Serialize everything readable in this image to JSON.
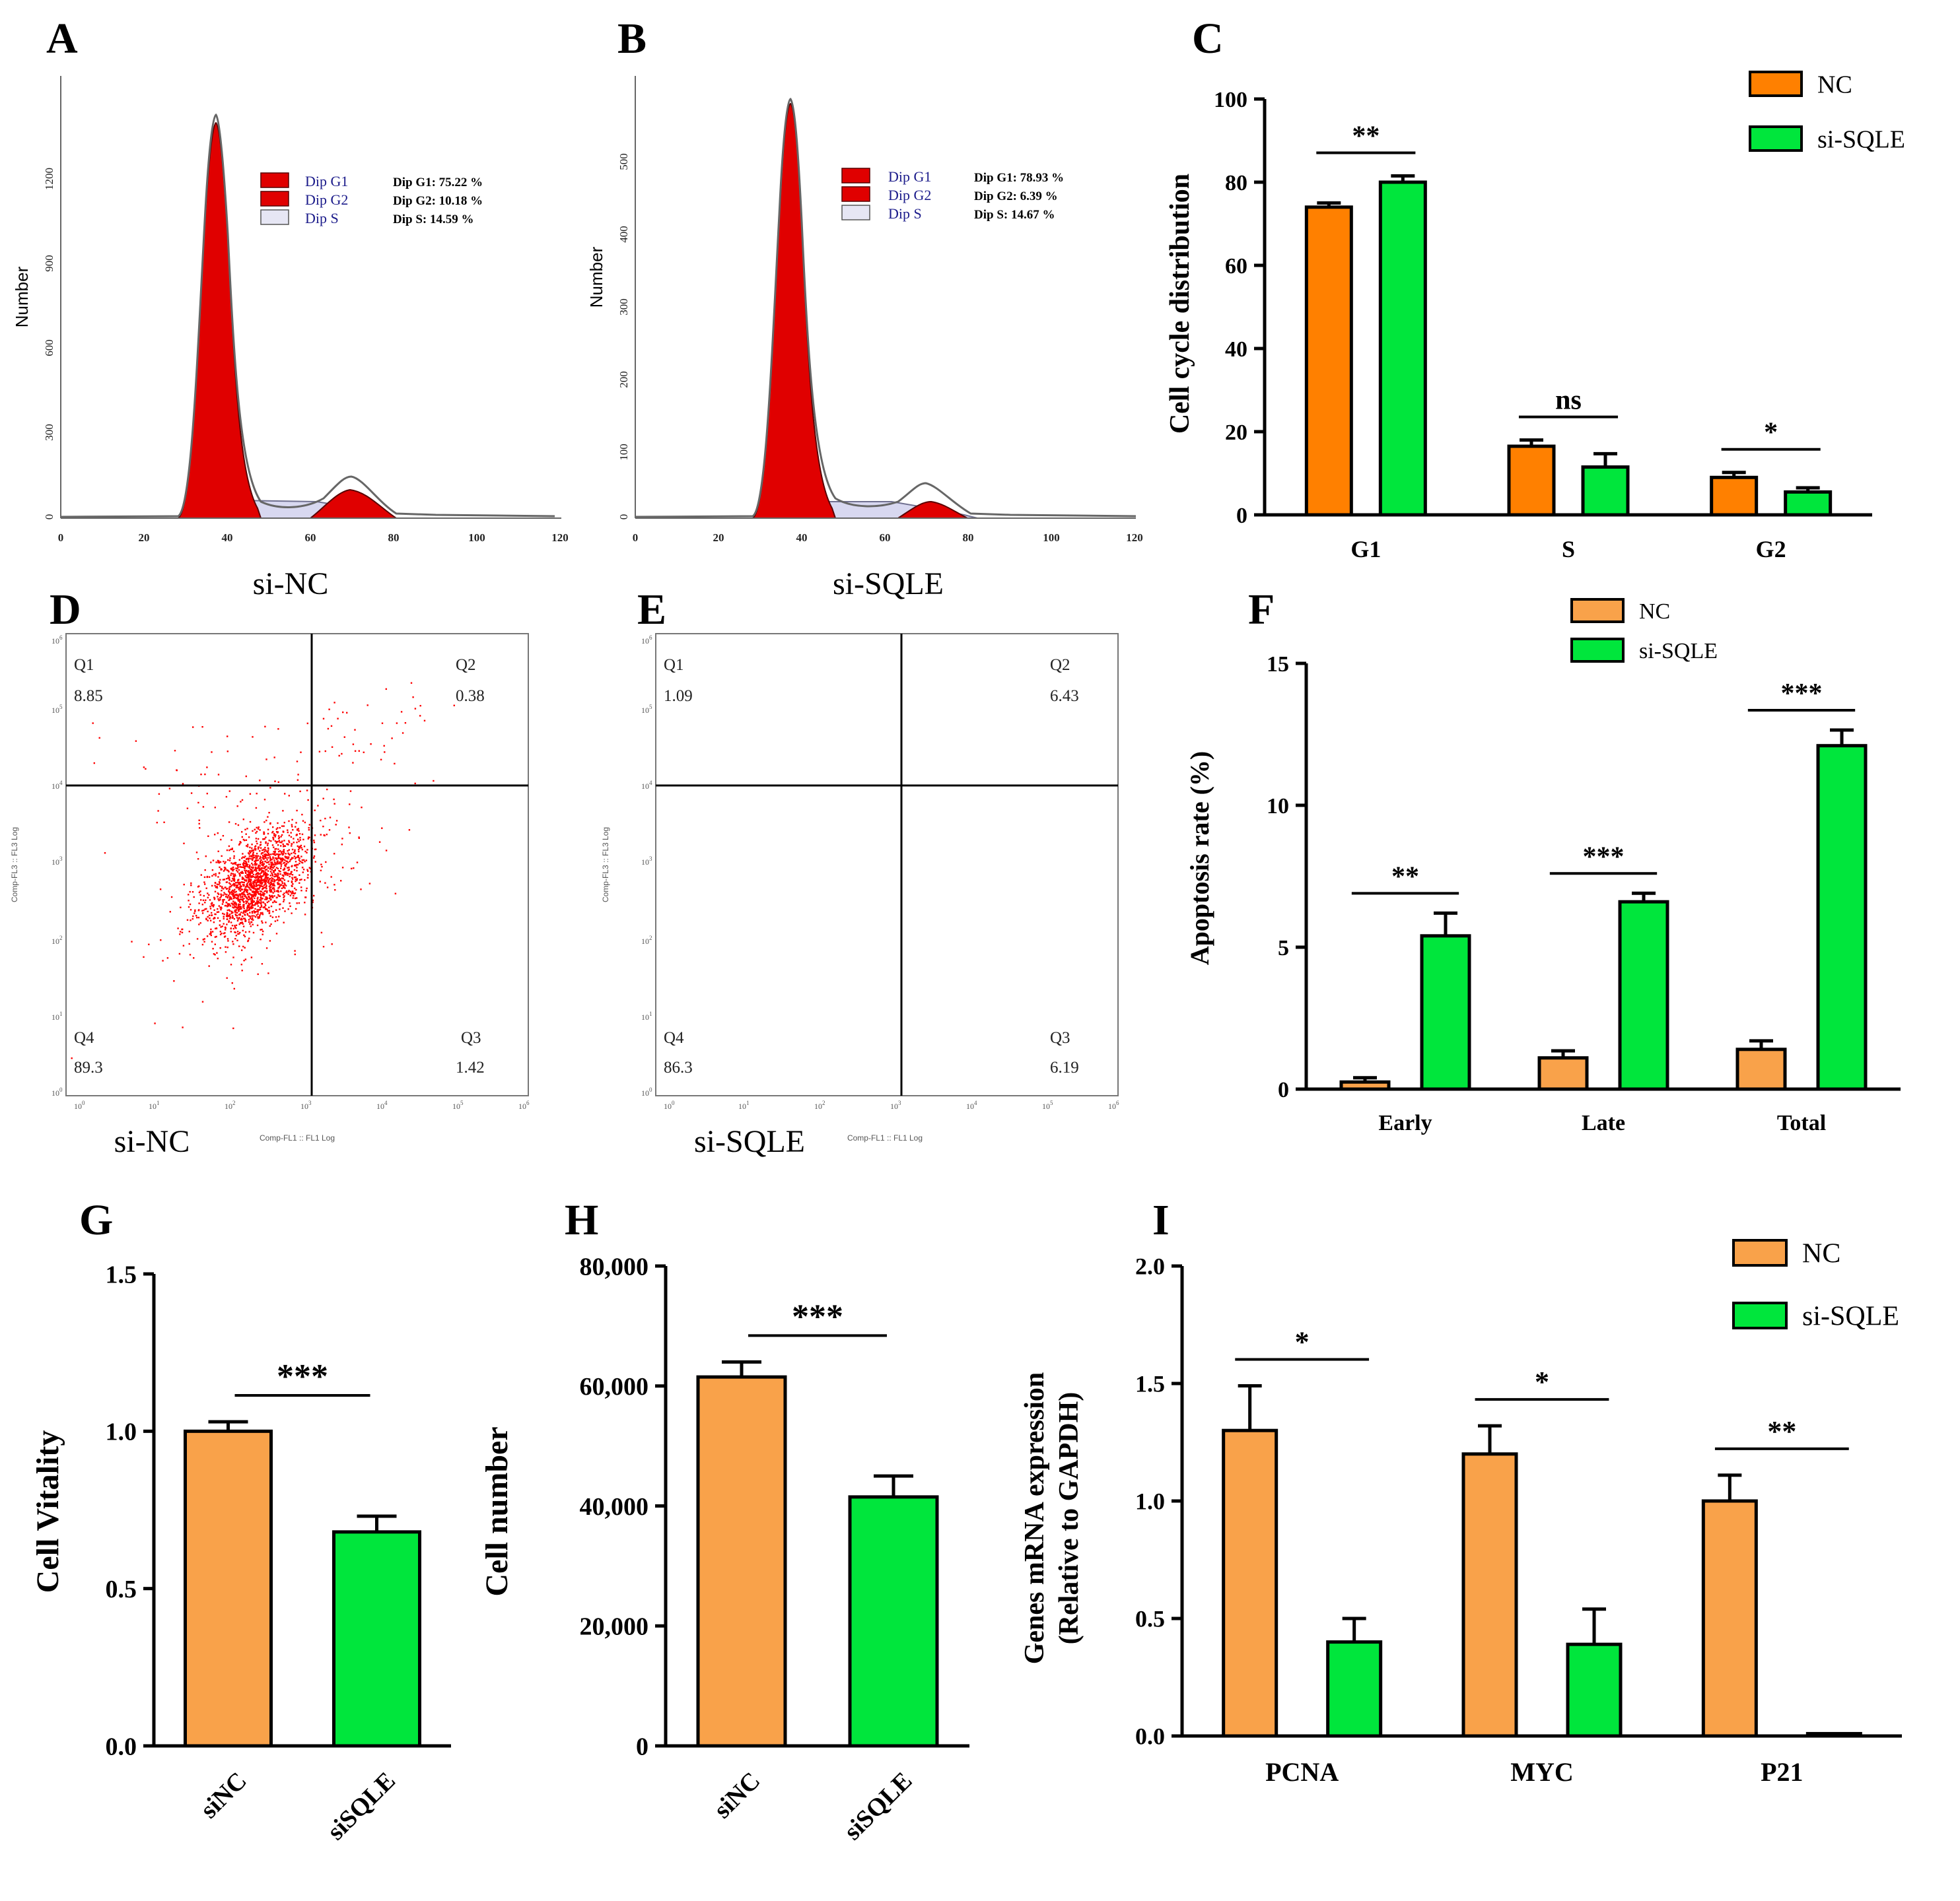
{
  "panels": {
    "A": {
      "letter": "A",
      "caption": "si-NC",
      "ylabel": "Number",
      "y_ticks": [
        "0",
        "300",
        "600",
        "900",
        "1200"
      ],
      "x_ticks": [
        "0",
        "20",
        "40",
        "60",
        "80",
        "100",
        "120"
      ],
      "legend": [
        "Dip G1",
        "Dip G2",
        "Dip S"
      ],
      "stats": [
        "Dip G1: 75.22 %",
        "Dip G2: 10.18 %",
        "Dip S: 14.59 %"
      ]
    },
    "B": {
      "letter": "B",
      "caption": "si-SQLE",
      "ylabel": "Number",
      "y_ticks": [
        "0",
        "100",
        "200",
        "300",
        "400",
        "500"
      ],
      "x_ticks": [
        "0",
        "20",
        "40",
        "60",
        "80",
        "100",
        "120"
      ],
      "legend": [
        "Dip G1",
        "Dip G2",
        "Dip S"
      ],
      "stats": [
        "Dip G1: 78.93 %",
        "Dip G2: 6.39 %",
        "Dip S: 14.67 %"
      ]
    },
    "C": {
      "letter": "C"
    },
    "D": {
      "letter": "D",
      "caption": "si-NC",
      "xlabel": "Comp-FL1 :: FL1 Log",
      "ylabel": "Comp-FL3 :: FL3 Log",
      "quadrants": [
        {
          "name": "Q1",
          "value": "8.85"
        },
        {
          "name": "Q2",
          "value": "0.38"
        },
        {
          "name": "Q4",
          "value": "89.3"
        },
        {
          "name": "Q3",
          "value": "1.42"
        }
      ]
    },
    "E": {
      "letter": "E",
      "caption": "si-SQLE",
      "xlabel": "Comp-FL1 :: FL1 Log",
      "ylabel": "Comp-FL3 :: FL3 Log",
      "quadrants": [
        {
          "name": "Q1",
          "value": "1.09"
        },
        {
          "name": "Q2",
          "value": "6.43"
        },
        {
          "name": "Q4",
          "value": "86.3"
        },
        {
          "name": "Q3",
          "value": "6.19"
        }
      ]
    },
    "F": {
      "letter": "F"
    },
    "G": {
      "letter": "G"
    },
    "H": {
      "letter": "H"
    },
    "I": {
      "letter": "I"
    }
  },
  "colors": {
    "nc": "#ff8000",
    "sqle": "#00e63c",
    "nc_light": "#f9a24a",
    "sqle_light": "#22ee22",
    "flow": "#ff0000",
    "hist_fill": "#e00000"
  },
  "chart_data": [
    {
      "panel": "C",
      "type": "bar",
      "categories": [
        "G1",
        "S",
        "G2"
      ],
      "series": [
        {
          "name": "NC",
          "values": [
            74,
            16.5,
            9
          ],
          "errors": [
            1,
            1.5,
            1.2
          ]
        },
        {
          "name": "si-SQLE",
          "values": [
            80,
            11.5,
            5.5
          ],
          "errors": [
            1.5,
            3.2,
            1
          ]
        }
      ],
      "ylabel": "Cell cycle distribution",
      "ylim": [
        0,
        100
      ],
      "yticks": [
        0,
        20,
        40,
        60,
        80,
        100
      ],
      "significance": [
        "**",
        "ns",
        "*"
      ],
      "legend": "top-right"
    },
    {
      "panel": "F",
      "type": "bar",
      "categories": [
        "Early",
        "Late",
        "Total"
      ],
      "series": [
        {
          "name": "NC",
          "values": [
            0.25,
            1.1,
            1.4
          ],
          "errors": [
            0.15,
            0.25,
            0.3
          ]
        },
        {
          "name": "si-SQLE",
          "values": [
            5.4,
            6.6,
            12.1
          ],
          "errors": [
            0.8,
            0.3,
            0.55
          ]
        }
      ],
      "ylabel": "Apoptosis rate (%)",
      "ylim": [
        0,
        15
      ],
      "yticks": [
        0,
        5,
        10,
        15
      ],
      "significance": [
        "**",
        "***",
        "***"
      ],
      "legend": "top-center"
    },
    {
      "panel": "G",
      "type": "bar",
      "categories": [
        "siNC",
        "siSQLE"
      ],
      "values": [
        1.0,
        0.68
      ],
      "errors": [
        0.03,
        0.05
      ],
      "ylabel": "Cell Vitality",
      "ylim": [
        0,
        1.5
      ],
      "yticks": [
        "0.0",
        "0.5",
        "1.0",
        "1.5"
      ],
      "significance": [
        "***"
      ]
    },
    {
      "panel": "H",
      "type": "bar",
      "categories": [
        "siNC",
        "siSQLE"
      ],
      "values": [
        61500,
        41500
      ],
      "errors": [
        2500,
        3500
      ],
      "ylabel": "Cell number",
      "ylim": [
        0,
        80000
      ],
      "yticks": [
        "0",
        "20,000",
        "40,000",
        "60,000",
        "80,000"
      ],
      "significance": [
        "***"
      ]
    },
    {
      "panel": "I",
      "type": "bar",
      "categories": [
        "PCNA",
        "MYC",
        "P21"
      ],
      "series": [
        {
          "name": "NC",
          "values": [
            1.3,
            1.2,
            1.0
          ],
          "errors": [
            0.19,
            0.12,
            0.11
          ]
        },
        {
          "name": "si-SQLE",
          "values": [
            0.4,
            0.39,
            0.01
          ],
          "errors": [
            0.1,
            0.15,
            0
          ]
        }
      ],
      "ylabel": [
        "Genes mRNA expression",
        "(Relative to GAPDH)"
      ],
      "ylim": [
        0,
        2.0
      ],
      "yticks": [
        "0.0",
        "0.5",
        "1.0",
        "1.5",
        "2.0"
      ],
      "significance": [
        "*",
        "*",
        "**"
      ],
      "legend": "top-right"
    }
  ]
}
